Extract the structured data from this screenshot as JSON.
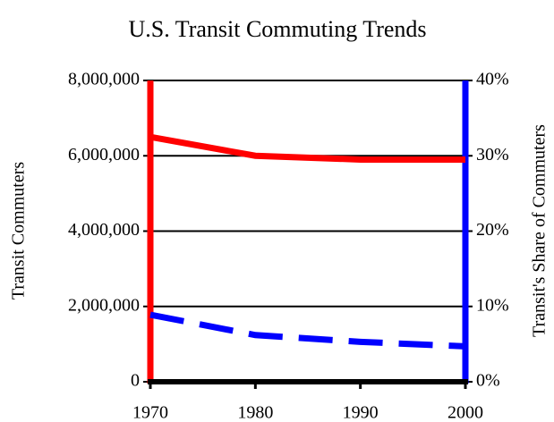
{
  "chart_data": {
    "type": "line",
    "title": "U.S. Transit Commuting Trends",
    "y_label": "Transit Commuters",
    "y2_label": "Transit's Share of Commuters",
    "x": [
      1970,
      1980,
      1990,
      2000
    ],
    "xlim": [
      1970,
      2000
    ],
    "xticks": [
      1970,
      1980,
      1990,
      2000
    ],
    "ylim": [
      0,
      8000000
    ],
    "yticks": [
      0,
      {
        "value": 2000000,
        "label": "2,000,000"
      },
      {
        "value": 4000000,
        "label": "4,000,000"
      },
      {
        "value": 6000000,
        "label": "6,000,000"
      },
      {
        "value": 8000000,
        "label": "8,000,000"
      }
    ],
    "y2lim": [
      0,
      40
    ],
    "y2ticks": [
      {
        "value": 0,
        "label": "0%"
      },
      {
        "value": 10,
        "label": "10%"
      },
      {
        "value": 20,
        "label": "20%"
      },
      {
        "value": 30,
        "label": "30%"
      },
      {
        "value": 40,
        "label": "40%"
      }
    ],
    "grid": true,
    "series": [
      {
        "name": "Transit Commuters",
        "color": "#ff0000",
        "values": [
          6500000,
          6000000,
          5900000,
          5900000
        ]
      },
      {
        "name": "Transit's Share of Commuters",
        "color": "#0000ff",
        "axis": "y2",
        "dashed": true,
        "values": [
          8.9,
          6.2,
          5.3,
          4.7
        ]
      }
    ]
  }
}
